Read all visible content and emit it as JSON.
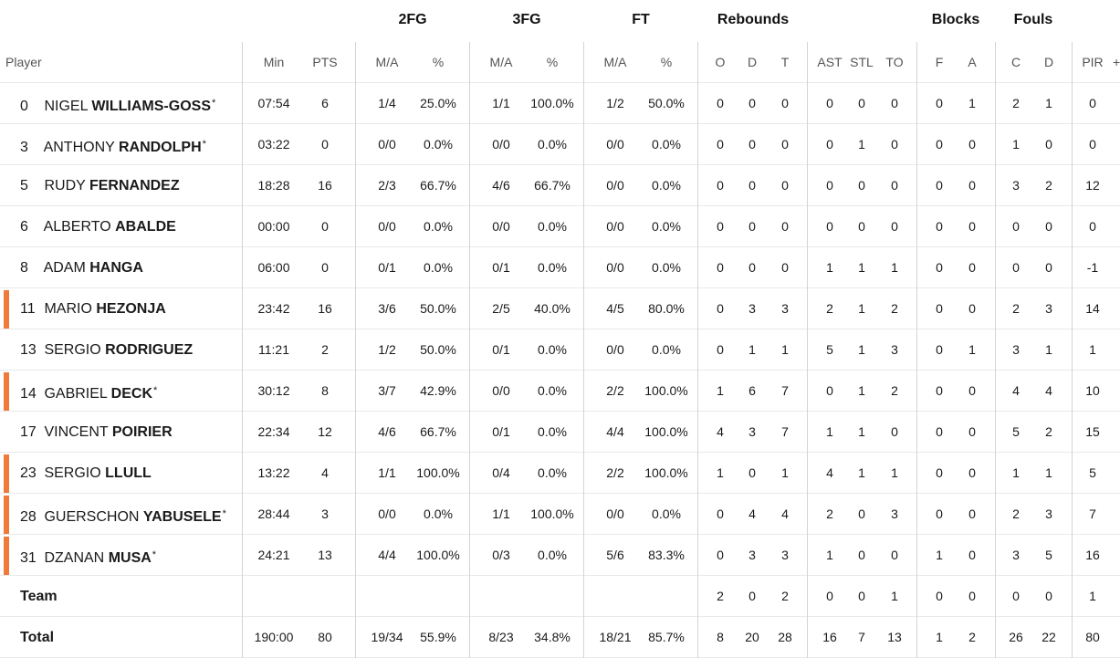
{
  "headers": {
    "groups": {
      "two_fg": "2FG",
      "three_fg": "3FG",
      "ft": "FT",
      "rebounds": "Rebounds",
      "blocks": "Blocks",
      "fouls": "Fouls"
    },
    "columns": {
      "player": "Player",
      "min": "Min",
      "pts": "PTS",
      "fg2_ma": "M/A",
      "fg2_pct": "%",
      "fg3_ma": "M/A",
      "fg3_pct": "%",
      "ft_ma": "M/A",
      "ft_pct": "%",
      "reb_o": "O",
      "reb_d": "D",
      "reb_t": "T",
      "ast": "AST",
      "stl": "STL",
      "to": "TO",
      "blk_f": "F",
      "blk_a": "A",
      "foul_c": "C",
      "foul_d": "D",
      "pir": "PIR",
      "more": "+"
    }
  },
  "players": [
    {
      "num": "0",
      "first": "NIGEL",
      "last": "WILLIAMS-GOSS",
      "starter": "*",
      "marker": false,
      "min": "07:54",
      "pts": "6",
      "fg2_ma": "1/4",
      "fg2_pct": "25.0%",
      "fg3_ma": "1/1",
      "fg3_pct": "100.0%",
      "ft_ma": "1/2",
      "ft_pct": "50.0%",
      "reb_o": "0",
      "reb_d": "0",
      "reb_t": "0",
      "ast": "0",
      "stl": "0",
      "to": "0",
      "blk_f": "0",
      "blk_a": "1",
      "foul_c": "2",
      "foul_d": "1",
      "pir": "0"
    },
    {
      "num": "3",
      "first": "ANTHONY",
      "last": "RANDOLPH",
      "starter": "*",
      "marker": false,
      "min": "03:22",
      "pts": "0",
      "fg2_ma": "0/0",
      "fg2_pct": "0.0%",
      "fg3_ma": "0/0",
      "fg3_pct": "0.0%",
      "ft_ma": "0/0",
      "ft_pct": "0.0%",
      "reb_o": "0",
      "reb_d": "0",
      "reb_t": "0",
      "ast": "0",
      "stl": "1",
      "to": "0",
      "blk_f": "0",
      "blk_a": "0",
      "foul_c": "1",
      "foul_d": "0",
      "pir": "0"
    },
    {
      "num": "5",
      "first": "RUDY",
      "last": "FERNANDEZ",
      "starter": "",
      "marker": false,
      "min": "18:28",
      "pts": "16",
      "fg2_ma": "2/3",
      "fg2_pct": "66.7%",
      "fg3_ma": "4/6",
      "fg3_pct": "66.7%",
      "ft_ma": "0/0",
      "ft_pct": "0.0%",
      "reb_o": "0",
      "reb_d": "0",
      "reb_t": "0",
      "ast": "0",
      "stl": "0",
      "to": "0",
      "blk_f": "0",
      "blk_a": "0",
      "foul_c": "3",
      "foul_d": "2",
      "pir": "12"
    },
    {
      "num": "6",
      "first": "ALBERTO",
      "last": "ABALDE",
      "starter": "",
      "marker": false,
      "min": "00:00",
      "pts": "0",
      "fg2_ma": "0/0",
      "fg2_pct": "0.0%",
      "fg3_ma": "0/0",
      "fg3_pct": "0.0%",
      "ft_ma": "0/0",
      "ft_pct": "0.0%",
      "reb_o": "0",
      "reb_d": "0",
      "reb_t": "0",
      "ast": "0",
      "stl": "0",
      "to": "0",
      "blk_f": "0",
      "blk_a": "0",
      "foul_c": "0",
      "foul_d": "0",
      "pir": "0"
    },
    {
      "num": "8",
      "first": "ADAM",
      "last": "HANGA",
      "starter": "",
      "marker": false,
      "min": "06:00",
      "pts": "0",
      "fg2_ma": "0/1",
      "fg2_pct": "0.0%",
      "fg3_ma": "0/1",
      "fg3_pct": "0.0%",
      "ft_ma": "0/0",
      "ft_pct": "0.0%",
      "reb_o": "0",
      "reb_d": "0",
      "reb_t": "0",
      "ast": "1",
      "stl": "1",
      "to": "1",
      "blk_f": "0",
      "blk_a": "0",
      "foul_c": "0",
      "foul_d": "0",
      "pir": "-1"
    },
    {
      "num": "11",
      "first": "MARIO",
      "last": "HEZONJA",
      "starter": "",
      "marker": true,
      "min": "23:42",
      "pts": "16",
      "fg2_ma": "3/6",
      "fg2_pct": "50.0%",
      "fg3_ma": "2/5",
      "fg3_pct": "40.0%",
      "ft_ma": "4/5",
      "ft_pct": "80.0%",
      "reb_o": "0",
      "reb_d": "3",
      "reb_t": "3",
      "ast": "2",
      "stl": "1",
      "to": "2",
      "blk_f": "0",
      "blk_a": "0",
      "foul_c": "2",
      "foul_d": "3",
      "pir": "14"
    },
    {
      "num": "13",
      "first": "SERGIO",
      "last": "RODRIGUEZ",
      "starter": "",
      "marker": false,
      "min": "11:21",
      "pts": "2",
      "fg2_ma": "1/2",
      "fg2_pct": "50.0%",
      "fg3_ma": "0/1",
      "fg3_pct": "0.0%",
      "ft_ma": "0/0",
      "ft_pct": "0.0%",
      "reb_o": "0",
      "reb_d": "1",
      "reb_t": "1",
      "ast": "5",
      "stl": "1",
      "to": "3",
      "blk_f": "0",
      "blk_a": "1",
      "foul_c": "3",
      "foul_d": "1",
      "pir": "1"
    },
    {
      "num": "14",
      "first": "GABRIEL",
      "last": "DECK",
      "starter": "*",
      "marker": true,
      "min": "30:12",
      "pts": "8",
      "fg2_ma": "3/7",
      "fg2_pct": "42.9%",
      "fg3_ma": "0/0",
      "fg3_pct": "0.0%",
      "ft_ma": "2/2",
      "ft_pct": "100.0%",
      "reb_o": "1",
      "reb_d": "6",
      "reb_t": "7",
      "ast": "0",
      "stl": "1",
      "to": "2",
      "blk_f": "0",
      "blk_a": "0",
      "foul_c": "4",
      "foul_d": "4",
      "pir": "10"
    },
    {
      "num": "17",
      "first": "VINCENT",
      "last": "POIRIER",
      "starter": "",
      "marker": false,
      "min": "22:34",
      "pts": "12",
      "fg2_ma": "4/6",
      "fg2_pct": "66.7%",
      "fg3_ma": "0/1",
      "fg3_pct": "0.0%",
      "ft_ma": "4/4",
      "ft_pct": "100.0%",
      "reb_o": "4",
      "reb_d": "3",
      "reb_t": "7",
      "ast": "1",
      "stl": "1",
      "to": "0",
      "blk_f": "0",
      "blk_a": "0",
      "foul_c": "5",
      "foul_d": "2",
      "pir": "15"
    },
    {
      "num": "23",
      "first": "SERGIO",
      "last": "LLULL",
      "starter": "",
      "marker": true,
      "min": "13:22",
      "pts": "4",
      "fg2_ma": "1/1",
      "fg2_pct": "100.0%",
      "fg3_ma": "0/4",
      "fg3_pct": "0.0%",
      "ft_ma": "2/2",
      "ft_pct": "100.0%",
      "reb_o": "1",
      "reb_d": "0",
      "reb_t": "1",
      "ast": "4",
      "stl": "1",
      "to": "1",
      "blk_f": "0",
      "blk_a": "0",
      "foul_c": "1",
      "foul_d": "1",
      "pir": "5"
    },
    {
      "num": "28",
      "first": "GUERSCHON",
      "last": "YABUSELE",
      "starter": "*",
      "marker": true,
      "min": "28:44",
      "pts": "3",
      "fg2_ma": "0/0",
      "fg2_pct": "0.0%",
      "fg3_ma": "1/1",
      "fg3_pct": "100.0%",
      "ft_ma": "0/0",
      "ft_pct": "0.0%",
      "reb_o": "0",
      "reb_d": "4",
      "reb_t": "4",
      "ast": "2",
      "stl": "0",
      "to": "3",
      "blk_f": "0",
      "blk_a": "0",
      "foul_c": "2",
      "foul_d": "3",
      "pir": "7"
    },
    {
      "num": "31",
      "first": "DZANAN",
      "last": "MUSA",
      "starter": "*",
      "marker": true,
      "min": "24:21",
      "pts": "13",
      "fg2_ma": "4/4",
      "fg2_pct": "100.0%",
      "fg3_ma": "0/3",
      "fg3_pct": "0.0%",
      "ft_ma": "5/6",
      "ft_pct": "83.3%",
      "reb_o": "0",
      "reb_d": "3",
      "reb_t": "3",
      "ast": "1",
      "stl": "0",
      "to": "0",
      "blk_f": "1",
      "blk_a": "0",
      "foul_c": "3",
      "foul_d": "5",
      "pir": "16"
    }
  ],
  "team": {
    "label": "Team",
    "reb_o": "2",
    "reb_d": "0",
    "reb_t": "2",
    "ast": "0",
    "stl": "0",
    "to": "1",
    "blk_f": "0",
    "blk_a": "0",
    "foul_c": "0",
    "foul_d": "0",
    "pir": "1"
  },
  "total": {
    "label": "Total",
    "min": "190:00",
    "pts": "80",
    "fg2_ma": "19/34",
    "fg2_pct": "55.9%",
    "fg3_ma": "8/23",
    "fg3_pct": "34.8%",
    "ft_ma": "18/21",
    "ft_pct": "85.7%",
    "reb_o": "8",
    "reb_d": "20",
    "reb_t": "28",
    "ast": "16",
    "stl": "7",
    "to": "13",
    "blk_f": "1",
    "blk_a": "2",
    "foul_c": "26",
    "foul_d": "22",
    "pir": "80"
  },
  "colors": {
    "marker": "#f07a3a",
    "divider": "#d4d4d4",
    "row_line": "#e9e9e9"
  }
}
